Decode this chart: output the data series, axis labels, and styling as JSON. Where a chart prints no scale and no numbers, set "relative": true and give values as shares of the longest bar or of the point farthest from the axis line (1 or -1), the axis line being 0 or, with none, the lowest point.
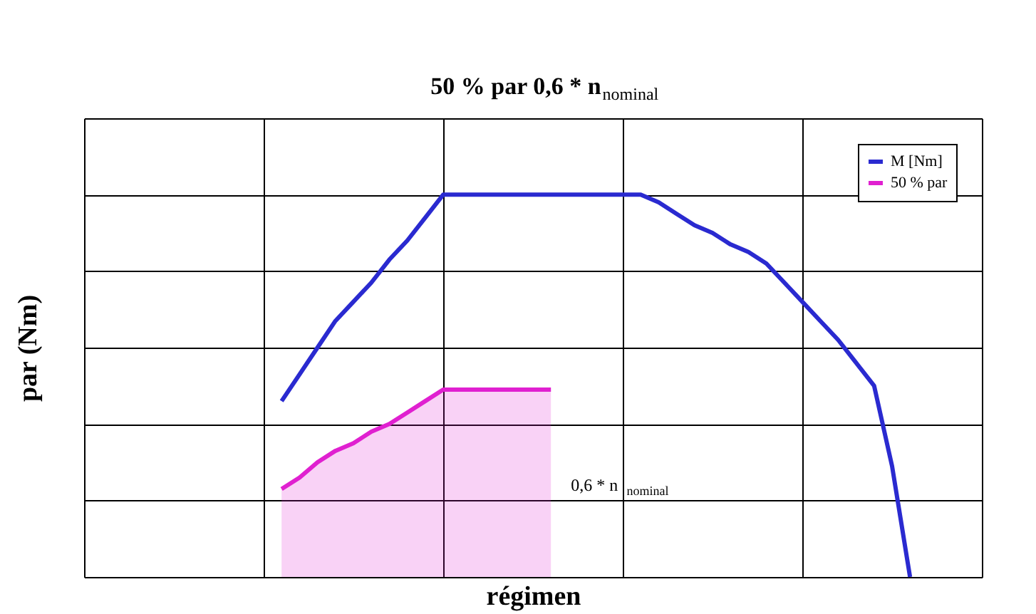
{
  "chart_data": {
    "type": "line",
    "title": "50 % par 0,6 * n$_{nominal}$",
    "xlabel": "régimen",
    "ylabel": "par (Nm)",
    "relative": true,
    "categories": [
      null,
      null,
      null,
      null,
      null,
      null,
      null,
      null,
      null,
      null,
      null,
      null,
      null,
      null,
      null,
      null,
      null,
      null,
      null,
      null,
      null,
      null,
      null,
      null,
      null,
      null,
      null,
      null,
      null,
      null,
      null,
      null,
      null,
      null,
      null,
      null,
      null,
      null,
      null,
      null,
      null,
      null,
      null,
      null,
      null,
      null,
      null,
      null,
      null,
      null,
      null
    ],
    "tick_labels": false,
    "grid": true,
    "legend": "top right",
    "line_style": "solid",
    "series": [
      {
        "name": "M [Nm]",
        "color": "#2a2ad0",
        "values": [
          null,
          null,
          null,
          null,
          null,
          null,
          null,
          null,
          null,
          null,
          null,
          0.46,
          0.53,
          0.6,
          0.67,
          0.72,
          0.77,
          0.83,
          0.88,
          0.94,
          1.0,
          1.0,
          1.0,
          1.0,
          1.0,
          1.0,
          1.0,
          1.0,
          1.0,
          1.0,
          1.0,
          1.0,
          0.98,
          0.95,
          0.92,
          0.9,
          0.87,
          0.85,
          0.82,
          0.77,
          0.72,
          0.67,
          0.62,
          0.56,
          0.5,
          0.29,
          0.0,
          null,
          null,
          null,
          null
        ]
      },
      {
        "name": "50 % par",
        "color": "#e020d0",
        "type": "area",
        "values": [
          null,
          null,
          null,
          null,
          null,
          null,
          null,
          null,
          null,
          null,
          null,
          0.23,
          0.26,
          0.3,
          0.33,
          0.35,
          0.38,
          0.4,
          0.43,
          0.46,
          0.49,
          0.49,
          0.49,
          0.49,
          0.49,
          0.49,
          0.49,
          null,
          null,
          null,
          null,
          null,
          null,
          null,
          null,
          null,
          null,
          null,
          null,
          null,
          null,
          null,
          null,
          null,
          null,
          null,
          null,
          null,
          null,
          null,
          null
        ]
      }
    ],
    "annotations": [
      "0,6 * n$_{nominal}$"
    ]
  }
}
